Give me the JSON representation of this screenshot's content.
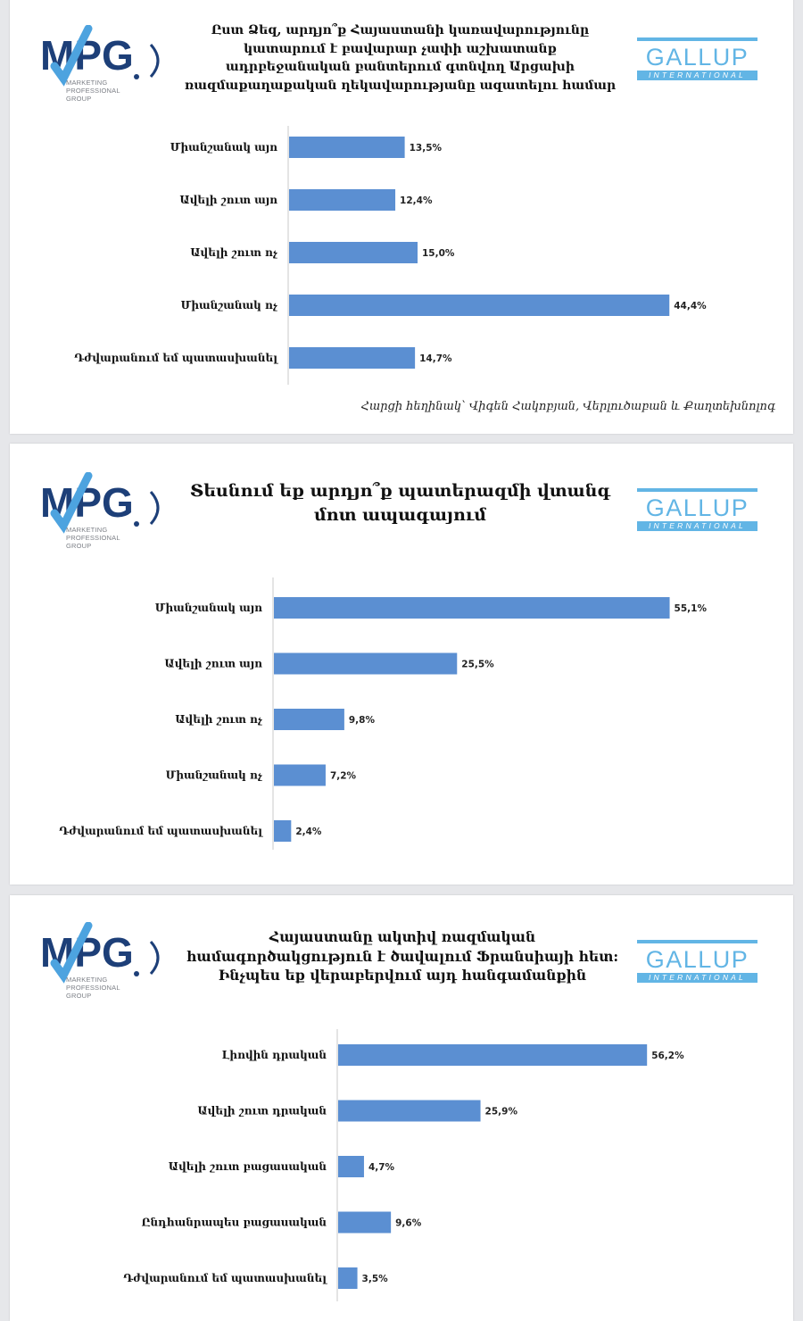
{
  "brand": {
    "mpg_logo": "MPG",
    "mpg_sub": [
      "MARKETING",
      "PROFESSIONAL",
      "GROUP"
    ],
    "gallup_name": "GALLUP",
    "gallup_sub": "INTERNATIONAL",
    "colors": {
      "mpg_blue": "#1d3f78",
      "mpg_check": "#4da3df",
      "gallup": "#62b5e5",
      "bar": "#5b8fd2"
    }
  },
  "source_note": "Հարցի հեղինակ՝ Վիգեն Հակոբյան, Վերլուծաբան և Քաղտեխնոլոգ",
  "chart_data": [
    {
      "type": "bar",
      "orientation": "horizontal",
      "title": "Ըստ Ձեզ, արդյո՞ք Հայաստանի կառավարությունը կատարում է բավարար չափի աշխատանք ադրբեջանական բանտերում գտնվող Արցախի ռազմաքաղաքական ղեկավարությանը ազատելու համար",
      "categories": [
        "Միանշանակ այո",
        "Ավելի շուտ այո",
        "Ավելի շուտ ոչ",
        "Միանշանակ ոչ",
        "Դժվարանում եմ պատասխանել"
      ],
      "values": [
        13.5,
        12.4,
        15.0,
        44.4,
        14.7
      ],
      "value_labels": [
        "13,5%",
        "12,4%",
        "15,0%",
        "44,4%",
        "14,7%"
      ],
      "xlim": [
        0,
        50
      ]
    },
    {
      "type": "bar",
      "orientation": "horizontal",
      "title": "Տեսնում եք արդյո՞ք պատերազմի վտանգ մոտ ապագայում",
      "categories": [
        "Միանշանակ այո",
        "Ավելի շուտ այո",
        "Ավելի շուտ ոչ",
        "Միանշանակ ոչ",
        "Դժվարանում եմ պատասխանել"
      ],
      "values": [
        55.1,
        25.5,
        9.8,
        7.2,
        2.4
      ],
      "value_labels": [
        "55,1%",
        "25,5%",
        "9,8%",
        "7,2%",
        "2,4%"
      ],
      "xlim": [
        0,
        60
      ]
    },
    {
      "type": "bar",
      "orientation": "horizontal",
      "title": "Հայաստանը ակտիվ ռազմական համագործակցություն է ծավալում Ֆրանսիայի հետ: Ինչպես եք վերաբերվում այդ հանգամանքին",
      "categories": [
        "Լիովին դրական",
        "Ավելի շուտ դրական",
        "Ավելի շուտ բացասական",
        "Ընդհանրապես բացասական",
        "Դժվարանում եմ պատասխանել"
      ],
      "values": [
        56.2,
        25.9,
        4.7,
        9.6,
        3.5
      ],
      "value_labels": [
        "56,2%",
        "25,9%",
        "4,7%",
        "9,6%",
        "3,5%"
      ],
      "xlim": [
        0,
        60
      ]
    }
  ]
}
